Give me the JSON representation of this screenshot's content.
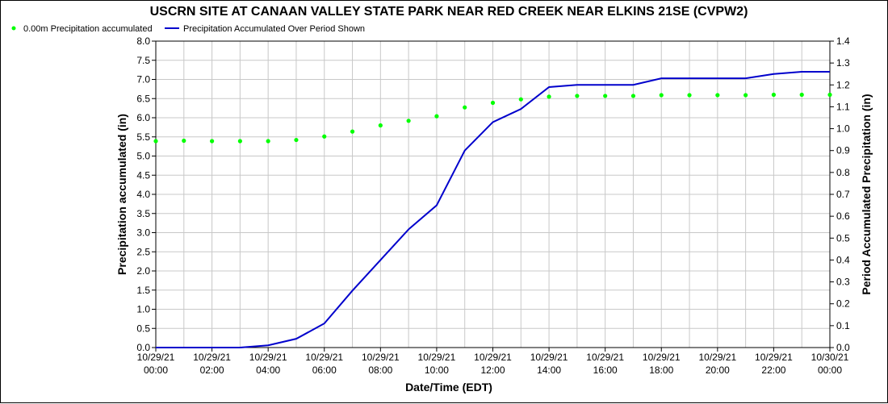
{
  "chart_data": {
    "type": "line",
    "title": "USCRN SITE AT CANAAN VALLEY STATE PARK NEAR RED CREEK NEAR ELKINS 21SE (CVPW2)",
    "xlabel": "Date/Time (EDT)",
    "ylabel_left": "Precipitation accumulated (in)",
    "ylabel_right": "Period Accumulated Precipitation (in)",
    "ylim_left": [
      0,
      8.0
    ],
    "ylim_right": [
      0,
      1.4
    ],
    "yticks_left": [
      "0.0",
      "0.5",
      "1.0",
      "1.5",
      "2.0",
      "2.5",
      "3.0",
      "3.5",
      "4.0",
      "4.5",
      "5.0",
      "5.5",
      "6.0",
      "6.5",
      "7.0",
      "7.5",
      "8.0"
    ],
    "yticks_right": [
      "0.0",
      "0.1",
      "0.2",
      "0.3",
      "0.4",
      "0.5",
      "0.6",
      "0.7",
      "0.8",
      "0.9",
      "1.0",
      "1.1",
      "1.2",
      "1.3",
      "1.4"
    ],
    "x_hours": [
      0,
      1,
      2,
      3,
      4,
      5,
      6,
      7,
      8,
      9,
      10,
      11,
      12,
      13,
      14,
      15,
      16,
      17,
      18,
      19,
      20,
      21,
      22,
      23,
      24
    ],
    "x_ticks": [
      {
        "hour": 0,
        "date": "10/29/21",
        "time": "00:00"
      },
      {
        "hour": 2,
        "date": "10/29/21",
        "time": "02:00"
      },
      {
        "hour": 4,
        "date": "10/29/21",
        "time": "04:00"
      },
      {
        "hour": 6,
        "date": "10/29/21",
        "time": "06:00"
      },
      {
        "hour": 8,
        "date": "10/29/21",
        "time": "08:00"
      },
      {
        "hour": 10,
        "date": "10/29/21",
        "time": "10:00"
      },
      {
        "hour": 12,
        "date": "10/29/21",
        "time": "12:00"
      },
      {
        "hour": 14,
        "date": "10/29/21",
        "time": "14:00"
      },
      {
        "hour": 16,
        "date": "10/29/21",
        "time": "16:00"
      },
      {
        "hour": 18,
        "date": "10/29/21",
        "time": "18:00"
      },
      {
        "hour": 20,
        "date": "10/29/21",
        "time": "20:00"
      },
      {
        "hour": 22,
        "date": "10/29/21",
        "time": "22:00"
      },
      {
        "hour": 24,
        "date": "10/30/21",
        "time": "00:00"
      }
    ],
    "grid": true,
    "legend_position": "top-left",
    "series": [
      {
        "name": "0.00m Precipitation accumulated",
        "kind": "scatter",
        "axis": "left",
        "color": "#00ff00",
        "values": [
          5.39,
          5.4,
          5.39,
          5.39,
          5.39,
          5.42,
          5.51,
          5.64,
          5.8,
          5.92,
          6.04,
          6.27,
          6.39,
          6.48,
          6.55,
          6.57,
          6.57,
          6.57,
          6.59,
          6.59,
          6.59,
          6.59,
          6.6,
          6.6,
          6.6
        ]
      },
      {
        "name": "Precipitation Accumulated Over Period Shown",
        "kind": "line",
        "axis": "right",
        "color": "#0000cc",
        "values": [
          0.0,
          0.0,
          0.0,
          0.0,
          0.01,
          0.04,
          0.11,
          0.26,
          0.4,
          0.54,
          0.65,
          0.9,
          1.03,
          1.09,
          1.19,
          1.2,
          1.2,
          1.2,
          1.23,
          1.23,
          1.23,
          1.23,
          1.25,
          1.26,
          1.26
        ]
      }
    ]
  }
}
